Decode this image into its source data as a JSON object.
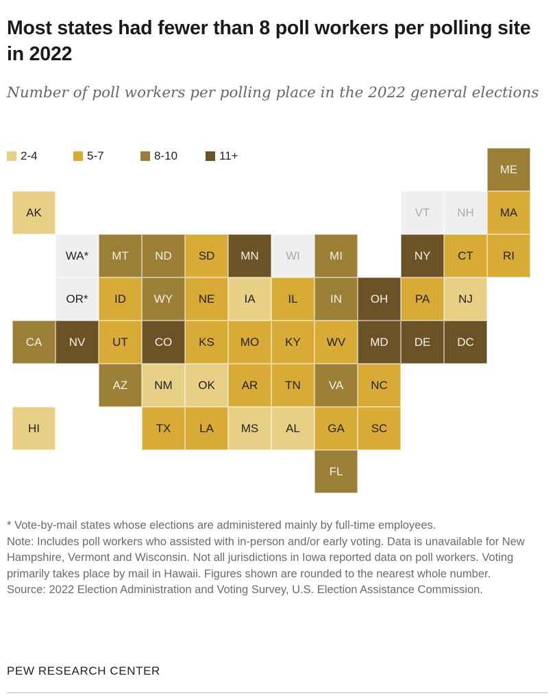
{
  "title": "Most states had fewer than 8 poll workers per polling site in 2022",
  "subtitle": "Number of poll workers per polling place in the 2022 general elections",
  "legend": [
    {
      "label": "2-4",
      "category": "2-4",
      "color": "#e8cf86"
    },
    {
      "label": "5-7",
      "category": "5-7",
      "color": "#d8aa36"
    },
    {
      "label": "8-10",
      "category": "8-10",
      "color": "#9c7f36"
    },
    {
      "label": "11+",
      "category": "11+",
      "color": "#6b5327"
    }
  ],
  "no_data_color": "#efefef",
  "states": [
    {
      "abbr": "ME",
      "category": "8-10",
      "vote_by_mail": false
    },
    {
      "abbr": "AK",
      "category": "2-4",
      "vote_by_mail": false
    },
    {
      "abbr": "VT",
      "category": "no data",
      "vote_by_mail": false
    },
    {
      "abbr": "NH",
      "category": "no data",
      "vote_by_mail": false
    },
    {
      "abbr": "MA",
      "category": "5-7",
      "vote_by_mail": false
    },
    {
      "abbr": "WA*",
      "category": "no data",
      "vote_by_mail": true
    },
    {
      "abbr": "MT",
      "category": "8-10",
      "vote_by_mail": false
    },
    {
      "abbr": "ND",
      "category": "8-10",
      "vote_by_mail": false
    },
    {
      "abbr": "SD",
      "category": "5-7",
      "vote_by_mail": false
    },
    {
      "abbr": "MN",
      "category": "11+",
      "vote_by_mail": false
    },
    {
      "abbr": "WI",
      "category": "no data",
      "vote_by_mail": false
    },
    {
      "abbr": "MI",
      "category": "8-10",
      "vote_by_mail": false
    },
    {
      "abbr": "NY",
      "category": "11+",
      "vote_by_mail": false
    },
    {
      "abbr": "CT",
      "category": "5-7",
      "vote_by_mail": false
    },
    {
      "abbr": "RI",
      "category": "5-7",
      "vote_by_mail": false
    },
    {
      "abbr": "OR*",
      "category": "no data",
      "vote_by_mail": true
    },
    {
      "abbr": "ID",
      "category": "5-7",
      "vote_by_mail": false
    },
    {
      "abbr": "WY",
      "category": "8-10",
      "vote_by_mail": false
    },
    {
      "abbr": "NE",
      "category": "5-7",
      "vote_by_mail": false
    },
    {
      "abbr": "IA",
      "category": "2-4",
      "vote_by_mail": false
    },
    {
      "abbr": "IL",
      "category": "5-7",
      "vote_by_mail": false
    },
    {
      "abbr": "IN",
      "category": "8-10",
      "vote_by_mail": false
    },
    {
      "abbr": "OH",
      "category": "11+",
      "vote_by_mail": false
    },
    {
      "abbr": "PA",
      "category": "5-7",
      "vote_by_mail": false
    },
    {
      "abbr": "NJ",
      "category": "2-4",
      "vote_by_mail": false
    },
    {
      "abbr": "CA",
      "category": "8-10",
      "vote_by_mail": false
    },
    {
      "abbr": "NV",
      "category": "11+",
      "vote_by_mail": false
    },
    {
      "abbr": "UT",
      "category": "5-7",
      "vote_by_mail": false
    },
    {
      "abbr": "CO",
      "category": "11+",
      "vote_by_mail": false
    },
    {
      "abbr": "KS",
      "category": "5-7",
      "vote_by_mail": false
    },
    {
      "abbr": "MO",
      "category": "5-7",
      "vote_by_mail": false
    },
    {
      "abbr": "KY",
      "category": "5-7",
      "vote_by_mail": false
    },
    {
      "abbr": "WV",
      "category": "5-7",
      "vote_by_mail": false
    },
    {
      "abbr": "MD",
      "category": "11+",
      "vote_by_mail": false
    },
    {
      "abbr": "DE",
      "category": "11+",
      "vote_by_mail": false
    },
    {
      "abbr": "DC",
      "category": "11+",
      "vote_by_mail": false
    },
    {
      "abbr": "AZ",
      "category": "8-10",
      "vote_by_mail": false
    },
    {
      "abbr": "NM",
      "category": "2-4",
      "vote_by_mail": false
    },
    {
      "abbr": "OK",
      "category": "2-4",
      "vote_by_mail": false
    },
    {
      "abbr": "AR",
      "category": "5-7",
      "vote_by_mail": false
    },
    {
      "abbr": "TN",
      "category": "5-7",
      "vote_by_mail": false
    },
    {
      "abbr": "VA",
      "category": "8-10",
      "vote_by_mail": false
    },
    {
      "abbr": "NC",
      "category": "5-7",
      "vote_by_mail": false
    },
    {
      "abbr": "HI",
      "category": "2-4",
      "vote_by_mail": false
    },
    {
      "abbr": "TX",
      "category": "5-7",
      "vote_by_mail": false
    },
    {
      "abbr": "LA",
      "category": "5-7",
      "vote_by_mail": false
    },
    {
      "abbr": "MS",
      "category": "2-4",
      "vote_by_mail": false
    },
    {
      "abbr": "AL",
      "category": "2-4",
      "vote_by_mail": false
    },
    {
      "abbr": "GA",
      "category": "5-7",
      "vote_by_mail": false
    },
    {
      "abbr": "SC",
      "category": "5-7",
      "vote_by_mail": false
    },
    {
      "abbr": "FL",
      "category": "8-10",
      "vote_by_mail": false
    }
  ],
  "notes": {
    "asterisk": "* Vote-by-mail states whose elections are administered mainly by full-time employees.",
    "note": "Note: Includes poll workers who assisted with in-person and/or early voting. Data is unavailable for New Hampshire, Vermont and Wisconsin. Not all jurisdictions in Iowa reported data on poll workers. Voting primarily takes place by mail in Hawaii. Figures shown are rounded to the nearest whole number.",
    "source": "Source: 2022 Election Administration and Voting Survey, U.S. Election Assistance Commission."
  },
  "footer": "PEW RESEARCH CENTER"
}
